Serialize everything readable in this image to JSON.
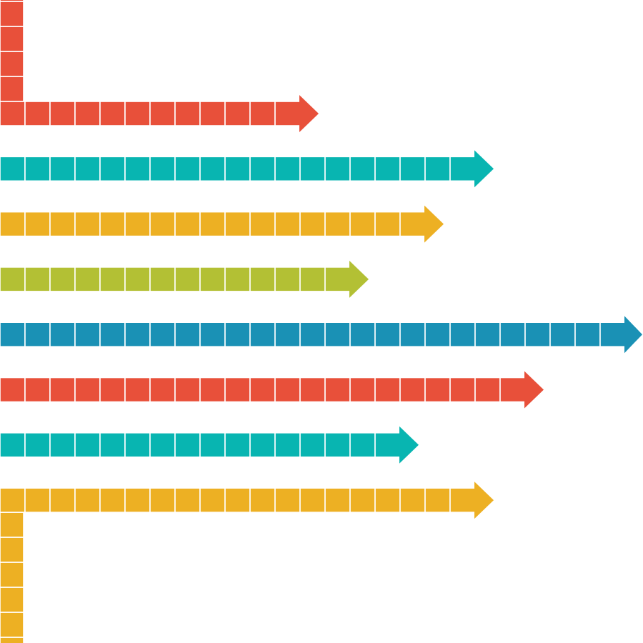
{
  "colors": {
    "red": "#E8503A",
    "teal": "#08B5B1",
    "gold": "#EDB023",
    "lime": "#B3C034",
    "blue": "#1A91B5"
  },
  "arrows": [
    {
      "id": "arrow-1",
      "color": "red",
      "squares": 12,
      "corner": "up"
    },
    {
      "id": "arrow-2",
      "color": "teal",
      "squares": 19
    },
    {
      "id": "arrow-3",
      "color": "gold",
      "squares": 17
    },
    {
      "id": "arrow-4",
      "color": "lime",
      "squares": 14
    },
    {
      "id": "arrow-5",
      "color": "blue",
      "squares": 25
    },
    {
      "id": "arrow-6",
      "color": "red",
      "squares": 21
    },
    {
      "id": "arrow-7",
      "color": "teal",
      "squares": 16
    },
    {
      "id": "arrow-8",
      "color": "gold",
      "squares": 19,
      "corner": "down"
    }
  ]
}
